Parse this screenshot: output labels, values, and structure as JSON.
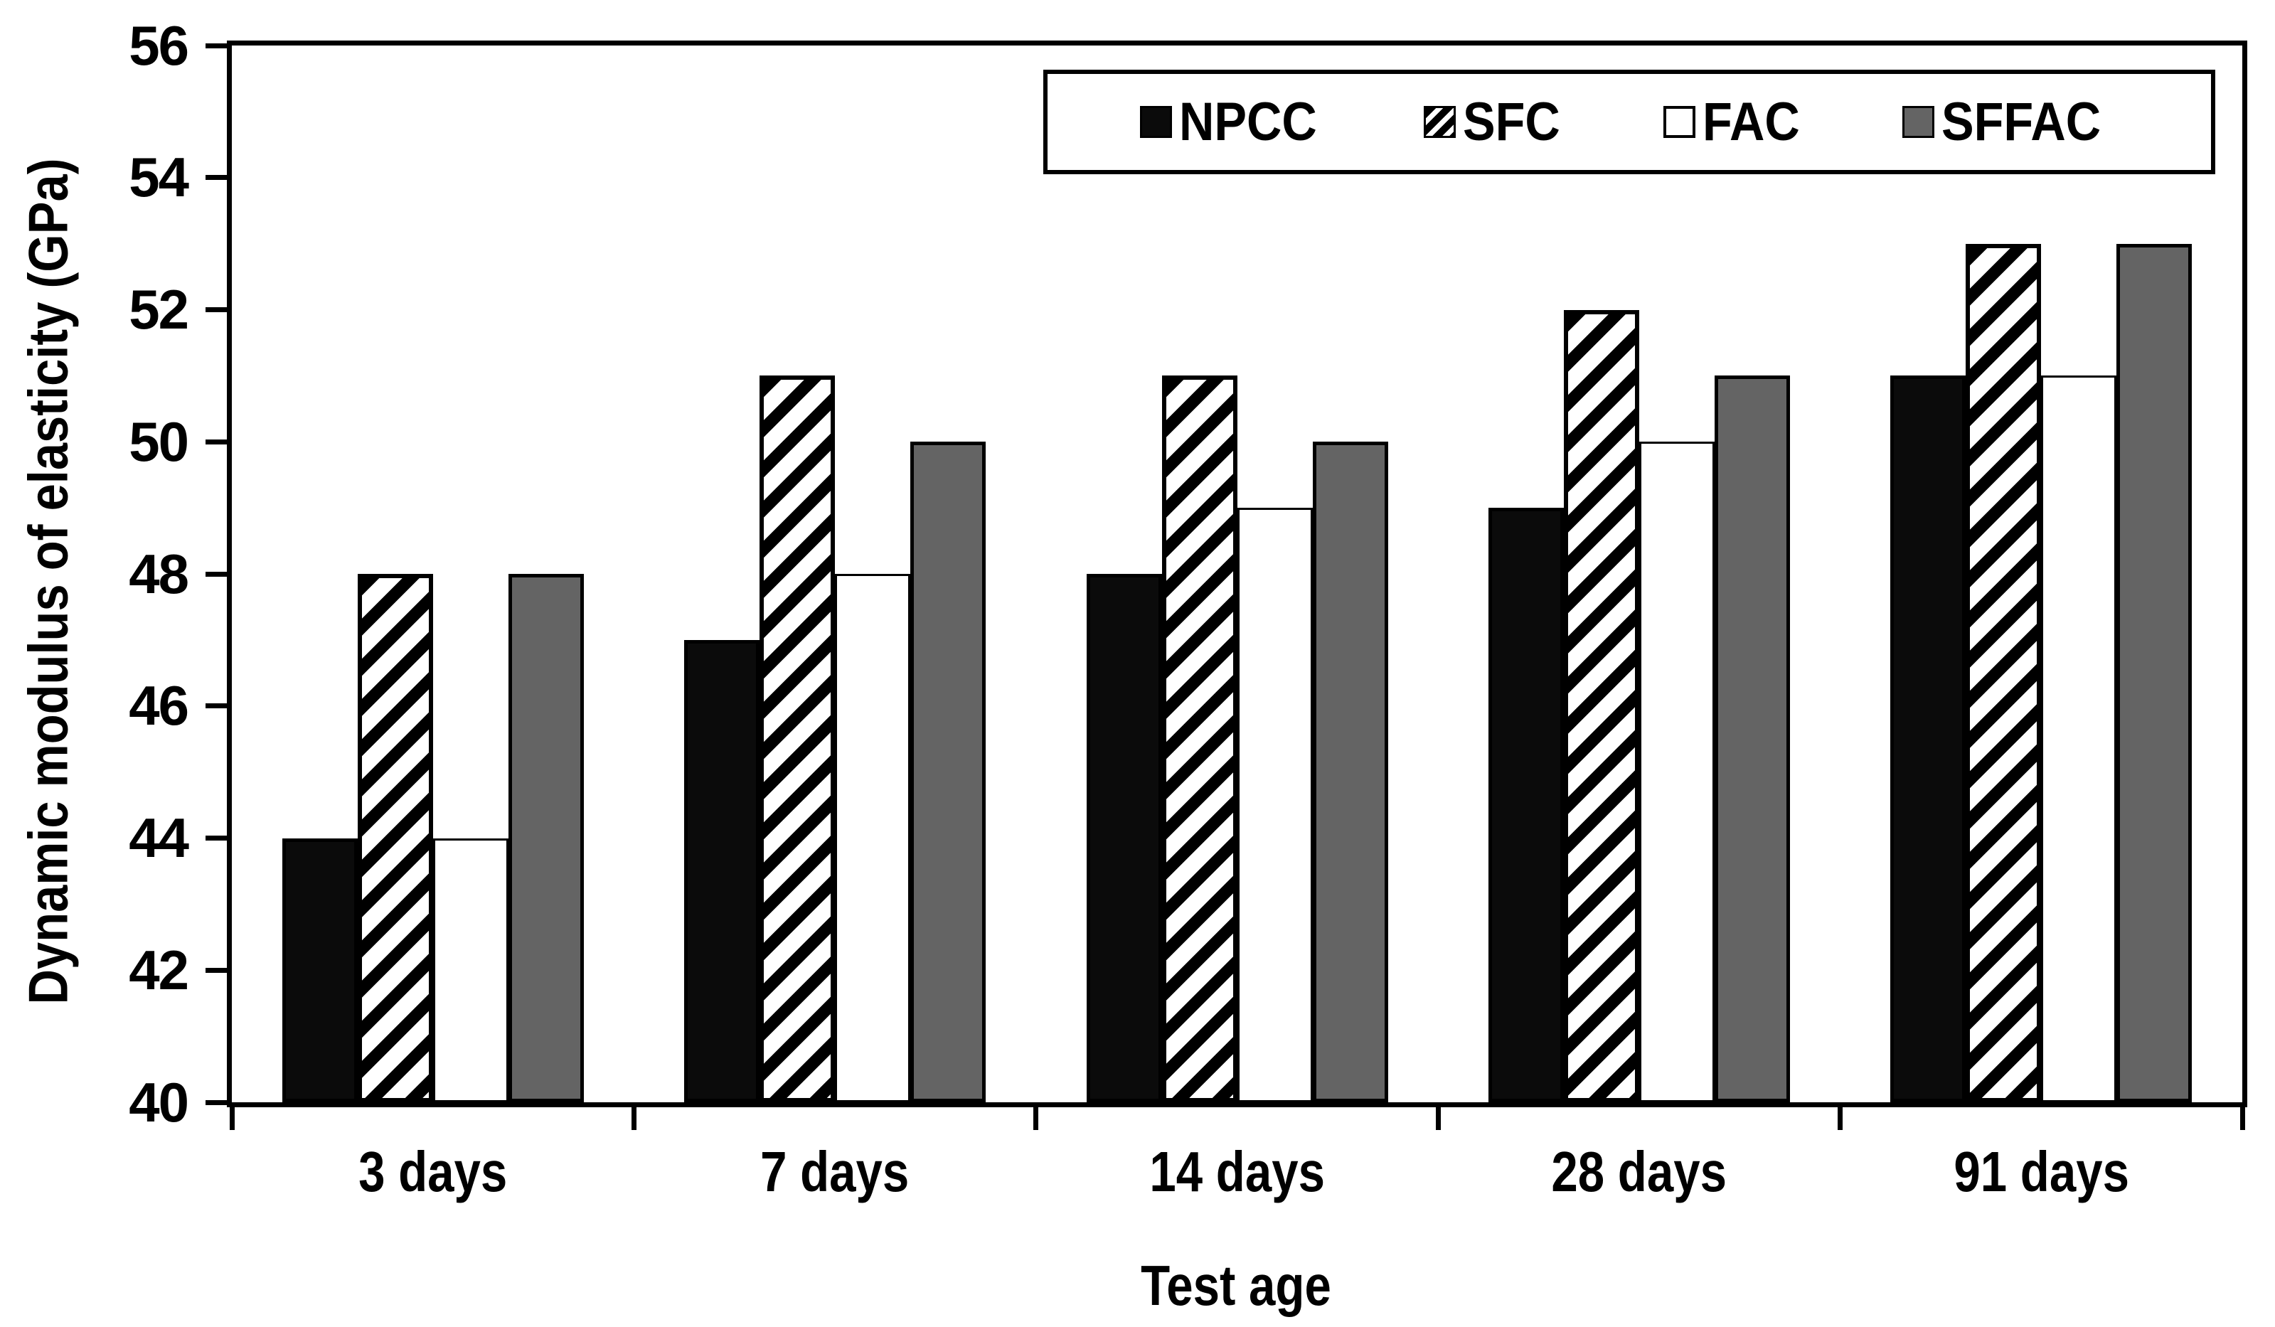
{
  "chart_data": {
    "type": "bar",
    "title": "",
    "xlabel": "Test age",
    "ylabel": "Dynamic modulus of elasticity (GPa)",
    "categories": [
      "3 days",
      "7 days",
      "14 days",
      "28 days",
      "91 days"
    ],
    "series": [
      {
        "name": "NPCC",
        "pattern": "solid-black",
        "values": [
          44,
          47,
          48,
          49,
          51
        ]
      },
      {
        "name": "SFC",
        "pattern": "diagonal-hatch",
        "values": [
          48,
          51,
          51,
          52,
          53
        ]
      },
      {
        "name": "FAC",
        "pattern": "white-outline",
        "values": [
          44,
          48,
          49,
          50,
          51
        ]
      },
      {
        "name": "SFFAC",
        "pattern": "solid-gray",
        "values": [
          48,
          50,
          50,
          51,
          53
        ]
      }
    ],
    "ylim": [
      40,
      56
    ],
    "yticks": [
      40,
      42,
      44,
      46,
      48,
      50,
      52,
      54,
      56
    ],
    "legend": {
      "position": "top-right",
      "labels": [
        "NPCC",
        "SFC",
        "FAC",
        "SFFAC"
      ]
    },
    "grid": false,
    "colors": {
      "bar_black": "#0b0b0b",
      "bar_gray": "#646464",
      "bar_white": "#ffffff",
      "hatch_stripe": "#000000",
      "axis": "#000000",
      "background": "#ffffff"
    }
  }
}
